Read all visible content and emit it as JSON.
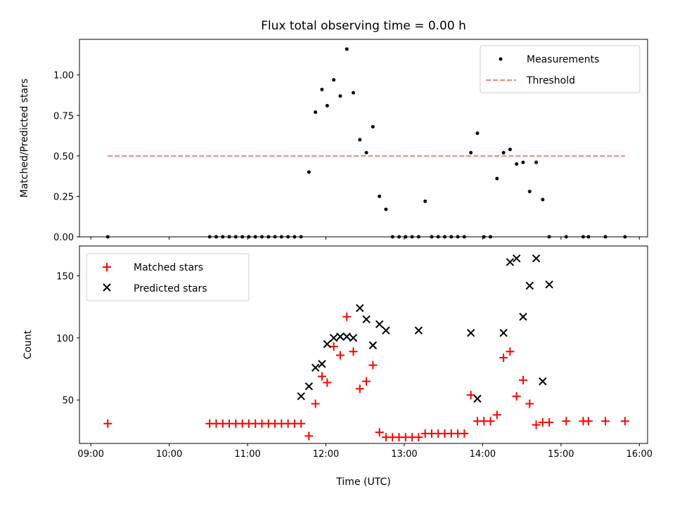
{
  "chart_data": [
    {
      "type": "scatter",
      "title": "Flux total observing time = 0.00 h",
      "xlabel": "",
      "ylabel": "Matched/Predicted stars",
      "ylim": [
        0,
        1.22
      ],
      "yticks": [
        "0.00",
        "0.25",
        "0.50",
        "0.75",
        "1.00"
      ],
      "ytick_values": [
        0,
        0.25,
        0.5,
        0.75,
        1.0
      ],
      "grid": false,
      "legend": "top-right",
      "series": [
        {
          "name": "Measurements",
          "kind": "dot",
          "color": "#000000",
          "x": [
            "09:13",
            "10:31",
            "10:36",
            "10:41",
            "10:46",
            "10:51",
            "10:56",
            "11:01",
            "11:06",
            "11:11",
            "11:16",
            "11:21",
            "11:26",
            "11:31",
            "11:36",
            "11:41",
            "11:47",
            "11:52",
            "11:57",
            "12:01",
            "12:06",
            "12:11",
            "12:16",
            "12:21",
            "12:26",
            "12:31",
            "12:36",
            "12:41",
            "12:46",
            "12:51",
            "12:56",
            "13:01",
            "13:06",
            "13:11",
            "13:16",
            "13:21",
            "13:26",
            "13:31",
            "13:36",
            "13:41",
            "13:46",
            "13:51",
            "13:56",
            "14:01",
            "14:06",
            "14:11",
            "14:16",
            "14:21",
            "14:26",
            "14:31",
            "14:36",
            "14:41",
            "14:46",
            "14:51",
            "15:04",
            "15:17",
            "15:21",
            "15:34",
            "15:49"
          ],
          "y": [
            0.0,
            0.0,
            0.0,
            0.0,
            0.0,
            0.0,
            0.0,
            0.0,
            0.0,
            0.0,
            0.0,
            0.0,
            0.0,
            0.0,
            0.0,
            0.0,
            0.4,
            0.77,
            0.91,
            0.81,
            0.97,
            0.87,
            1.16,
            0.89,
            0.6,
            0.52,
            0.68,
            0.25,
            0.17,
            0.0,
            0.0,
            0.0,
            0.0,
            0.0,
            0.22,
            0.0,
            0.0,
            0.0,
            0.0,
            0.0,
            0.0,
            0.52,
            0.64,
            0.0,
            0.0,
            0.36,
            0.52,
            0.54,
            0.45,
            0.46,
            0.28,
            0.46,
            0.23,
            0.0,
            0.0,
            0.0,
            0.0,
            0.0,
            0.0
          ]
        },
        {
          "name": "Threshold",
          "kind": "dashed-line",
          "color": "#f08080",
          "x": [
            "09:13",
            "15:49"
          ],
          "y": [
            0.5,
            0.5
          ]
        }
      ]
    },
    {
      "type": "scatter",
      "title": "",
      "xlabel": "Time (UTC)",
      "ylabel": "Count",
      "ylim": [
        15,
        174
      ],
      "yticks": [
        "50",
        "100",
        "150"
      ],
      "ytick_values": [
        50,
        100,
        150
      ],
      "xticks": [
        "09:00",
        "10:00",
        "11:00",
        "12:00",
        "13:00",
        "14:00",
        "15:00",
        "16:00"
      ],
      "grid": false,
      "legend": "top-left",
      "series": [
        {
          "name": "Matched stars",
          "kind": "plus",
          "color": "#ff0000",
          "x": [
            "09:13",
            "10:31",
            "10:36",
            "10:41",
            "10:46",
            "10:51",
            "10:56",
            "11:01",
            "11:06",
            "11:11",
            "11:16",
            "11:21",
            "11:26",
            "11:31",
            "11:36",
            "11:41",
            "11:47",
            "11:52",
            "11:57",
            "12:01",
            "12:06",
            "12:11",
            "12:16",
            "12:21",
            "12:26",
            "12:31",
            "12:36",
            "12:41",
            "12:46",
            "12:51",
            "12:56",
            "13:01",
            "13:06",
            "13:11",
            "13:16",
            "13:21",
            "13:26",
            "13:31",
            "13:36",
            "13:41",
            "13:46",
            "13:51",
            "13:56",
            "14:01",
            "14:06",
            "14:11",
            "14:16",
            "14:21",
            "14:26",
            "14:31",
            "14:36",
            "14:41",
            "14:46",
            "14:51",
            "15:04",
            "15:17",
            "15:21",
            "15:34",
            "15:49"
          ],
          "y": [
            31,
            31,
            31,
            31,
            31,
            31,
            31,
            31,
            31,
            31,
            31,
            31,
            31,
            31,
            31,
            31,
            21,
            47,
            69,
            64,
            93,
            86,
            117,
            89,
            59,
            65,
            78,
            24,
            20,
            20,
            20,
            20,
            20,
            20,
            23,
            23,
            23,
            23,
            23,
            23,
            23,
            54,
            33,
            33,
            33,
            38,
            84,
            89,
            53,
            66,
            47,
            30,
            32,
            32,
            33,
            33,
            33,
            33,
            33
          ]
        },
        {
          "name": "Predicted stars",
          "kind": "cross",
          "color": "#000000",
          "x": [
            "11:41",
            "11:47",
            "11:52",
            "11:57",
            "12:01",
            "12:06",
            "12:11",
            "12:16",
            "12:21",
            "12:26",
            "12:31",
            "12:36",
            "12:41",
            "12:46",
            "13:11",
            "13:51",
            "13:56",
            "14:16",
            "14:21",
            "14:26",
            "14:31",
            "14:36",
            "14:41",
            "14:46",
            "14:51"
          ],
          "y": [
            53,
            61,
            76,
            79,
            95,
            100,
            101,
            101,
            100,
            124,
            115,
            94,
            111,
            106,
            106,
            104,
            51,
            104,
            161,
            164,
            117,
            142,
            164,
            65,
            143
          ]
        }
      ]
    }
  ],
  "legend": {
    "top": [
      "Measurements",
      "Threshold"
    ],
    "bottom": [
      "Matched stars",
      "Predicted stars"
    ]
  }
}
